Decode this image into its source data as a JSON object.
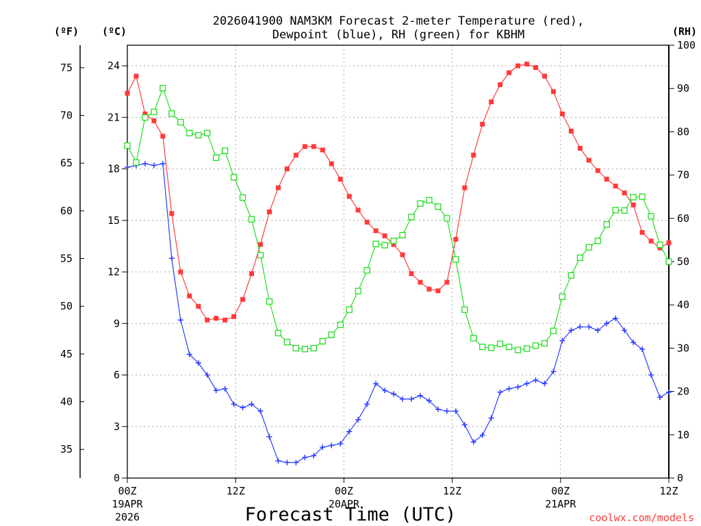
{
  "chart_data": {
    "type": "line",
    "title_line1": "2026041900 NAM3KM Forecast 2-meter Temperature (red),",
    "title_line2": "Dewpoint (blue), RH (green) for KBHM",
    "xlabel": "Forecast Time (UTC)",
    "credit": "coolwx.com/models",
    "unit_labels": {
      "fahrenheit": "(ºF)",
      "celsius": "(ºC)",
      "rh": "(RH)"
    },
    "x_range": [
      0,
      60
    ],
    "x_ticks": [
      {
        "hour": 0,
        "label": "00Z",
        "date": "19APR",
        "year": "2026"
      },
      {
        "hour": 12,
        "label": "12Z",
        "date": "",
        "year": ""
      },
      {
        "hour": 24,
        "label": "00Z",
        "date": "20APR",
        "year": ""
      },
      {
        "hour": 36,
        "label": "12Z",
        "date": "",
        "year": ""
      },
      {
        "hour": 48,
        "label": "00Z",
        "date": "21APR",
        "year": ""
      },
      {
        "hour": 60,
        "label": "12Z",
        "date": "",
        "year": ""
      }
    ],
    "y_left_celsius": {
      "range": [
        0,
        25.2
      ],
      "ticks": [
        0,
        3,
        6,
        9,
        12,
        15,
        18,
        21,
        24
      ]
    },
    "y_left_fahrenheit": {
      "range": [
        32,
        77.36
      ],
      "ticks": [
        35,
        40,
        45,
        50,
        55,
        60,
        65,
        70,
        75
      ]
    },
    "y_right_rh": {
      "range": [
        0,
        100
      ],
      "ticks": [
        0,
        10,
        20,
        30,
        40,
        50,
        60,
        70,
        80,
        90,
        100
      ]
    },
    "series": [
      {
        "name": "2-meter Temperature",
        "unit": "C",
        "color": "#ff3a3a",
        "marker": "filled-square",
        "values": [
          22.4,
          23.4,
          21.2,
          20.8,
          19.9,
          15.4,
          12.0,
          10.6,
          10.0,
          9.2,
          9.3,
          9.2,
          9.4,
          10.4,
          11.9,
          13.6,
          15.5,
          16.9,
          18.0,
          18.8,
          19.3,
          19.3,
          19.1,
          18.3,
          17.4,
          16.4,
          15.6,
          14.9,
          14.4,
          14.1,
          13.6,
          13.0,
          11.9,
          11.4,
          11.0,
          10.9,
          11.4,
          13.9,
          16.9,
          18.8,
          20.6,
          21.9,
          22.9,
          23.6,
          24.0,
          24.1,
          23.9,
          23.4,
          22.5,
          21.2,
          20.2,
          19.2,
          18.5,
          17.9,
          17.4,
          17.0,
          16.6,
          15.9,
          14.3,
          13.8,
          13.4,
          13.7
        ]
      },
      {
        "name": "Dewpoint",
        "unit": "C",
        "color": "#2a3cff",
        "marker": "plus",
        "values": [
          18.1,
          18.2,
          18.3,
          18.2,
          18.3,
          12.8,
          9.2,
          7.2,
          6.7,
          6.0,
          5.1,
          5.2,
          4.3,
          4.1,
          4.3,
          3.9,
          2.4,
          1.0,
          0.9,
          0.9,
          1.2,
          1.3,
          1.8,
          1.9,
          2.0,
          2.7,
          3.4,
          4.3,
          5.5,
          5.1,
          4.9,
          4.6,
          4.6,
          4.8,
          4.5,
          4.0,
          3.9,
          3.9,
          3.1,
          2.1,
          2.5,
          3.5,
          5.0,
          5.2,
          5.3,
          5.5,
          5.7,
          5.5,
          6.2,
          8.0,
          8.6,
          8.8,
          8.8,
          8.6,
          9.0,
          9.3,
          8.6,
          7.9,
          7.5,
          6.0,
          4.7,
          5.0
        ]
      },
      {
        "name": "RH",
        "unit": "%",
        "color": "#22dd22",
        "marker": "open-square",
        "values": [
          76.8,
          72.9,
          83.3,
          84.6,
          90.1,
          84.2,
          82.2,
          79.7,
          79.2,
          79.7,
          74.0,
          75.6,
          69.5,
          64.8,
          59.8,
          51.5,
          40.8,
          33.5,
          31.4,
          30.0,
          29.8,
          30.0,
          31.6,
          33.1,
          35.4,
          38.9,
          43.2,
          48.0,
          54.1,
          53.8,
          54.8,
          56.1,
          60.3,
          63.4,
          64.2,
          62.7,
          60.0,
          50.5,
          38.9,
          32.3,
          30.3,
          30.1,
          31.0,
          30.3,
          29.6,
          29.9,
          30.6,
          31.1,
          34.0,
          41.9,
          46.8,
          50.9,
          53.3,
          54.8,
          58.6,
          61.9,
          61.8,
          64.9,
          65.0,
          60.5,
          53.9,
          50.0
        ]
      }
    ]
  }
}
